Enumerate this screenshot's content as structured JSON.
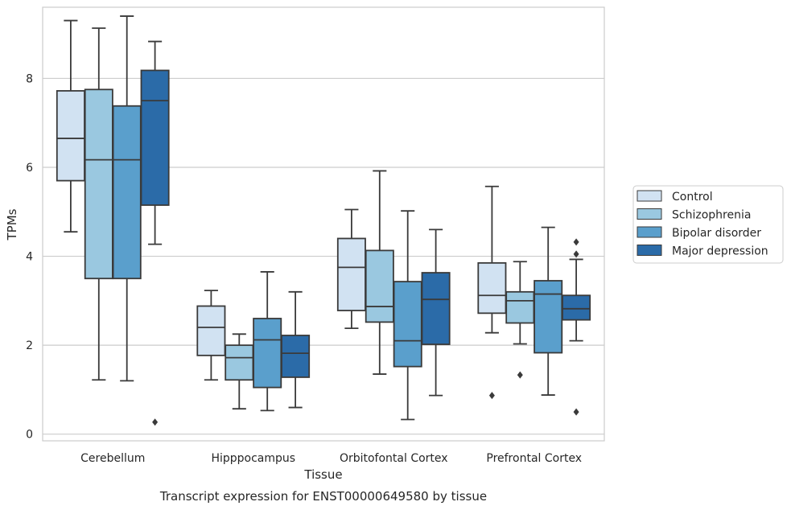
{
  "chart_data": {
    "type": "box",
    "xlabel": "Tissue",
    "ylabel": "TPMs",
    "caption": "Transcript expression for ENST00000649580 by tissue",
    "ylim": [
      -0.15,
      9.6
    ],
    "yticks": [
      0,
      2,
      4,
      6,
      8
    ],
    "grid": "horizontal",
    "legend_position": "right",
    "categories": [
      "Cerebellum",
      "Hipppocampus",
      "Orbitofontal Cortex",
      "Prefrontal Cortex"
    ],
    "series": [
      {
        "name": "Control",
        "color": "#d1e2f2",
        "boxes": [
          {
            "whislo": 4.55,
            "q1": 5.7,
            "med": 6.65,
            "q3": 7.72,
            "whishi": 9.3,
            "fliers": []
          },
          {
            "whislo": 1.22,
            "q1": 1.77,
            "med": 2.4,
            "q3": 2.88,
            "whishi": 3.23,
            "fliers": []
          },
          {
            "whislo": 2.38,
            "q1": 2.78,
            "med": 3.75,
            "q3": 4.4,
            "whishi": 5.05,
            "fliers": []
          },
          {
            "whislo": 2.28,
            "q1": 2.72,
            "med": 3.12,
            "q3": 3.85,
            "whishi": 5.57,
            "fliers": [
              0.87
            ]
          }
        ]
      },
      {
        "name": "Schizophrenia",
        "color": "#9ac8e0",
        "boxes": [
          {
            "whislo": 1.22,
            "q1": 3.5,
            "med": 6.17,
            "q3": 7.75,
            "whishi": 9.13,
            "fliers": []
          },
          {
            "whislo": 0.57,
            "q1": 1.22,
            "med": 1.72,
            "q3": 2.0,
            "whishi": 2.25,
            "fliers": []
          },
          {
            "whislo": 1.35,
            "q1": 2.52,
            "med": 2.87,
            "q3": 4.13,
            "whishi": 5.92,
            "fliers": []
          },
          {
            "whislo": 2.03,
            "q1": 2.5,
            "med": 3.0,
            "q3": 3.2,
            "whishi": 3.88,
            "fliers": [
              1.33
            ]
          }
        ]
      },
      {
        "name": "Bipolar disorder",
        "color": "#5a9fcc",
        "boxes": [
          {
            "whislo": 1.2,
            "q1": 3.5,
            "med": 6.17,
            "q3": 7.38,
            "whishi": 9.4,
            "fliers": []
          },
          {
            "whislo": 0.53,
            "q1": 1.05,
            "med": 2.12,
            "q3": 2.6,
            "whishi": 3.65,
            "fliers": []
          },
          {
            "whislo": 0.33,
            "q1": 1.52,
            "med": 2.1,
            "q3": 3.43,
            "whishi": 5.02,
            "fliers": []
          },
          {
            "whislo": 0.88,
            "q1": 1.83,
            "med": 3.15,
            "q3": 3.45,
            "whishi": 4.65,
            "fliers": []
          }
        ]
      },
      {
        "name": "Major depression",
        "color": "#2b6ba8",
        "boxes": [
          {
            "whislo": 4.27,
            "q1": 5.15,
            "med": 7.5,
            "q3": 8.18,
            "whishi": 8.83,
            "fliers": [
              0.27
            ]
          },
          {
            "whislo": 0.6,
            "q1": 1.28,
            "med": 1.82,
            "q3": 2.22,
            "whishi": 3.2,
            "fliers": []
          },
          {
            "whislo": 0.87,
            "q1": 2.02,
            "med": 3.03,
            "q3": 3.63,
            "whishi": 4.6,
            "fliers": []
          },
          {
            "whislo": 2.1,
            "q1": 2.57,
            "med": 2.82,
            "q3": 3.12,
            "whishi": 3.93,
            "fliers": [
              0.5,
              4.05,
              4.32
            ]
          }
        ]
      }
    ]
  }
}
